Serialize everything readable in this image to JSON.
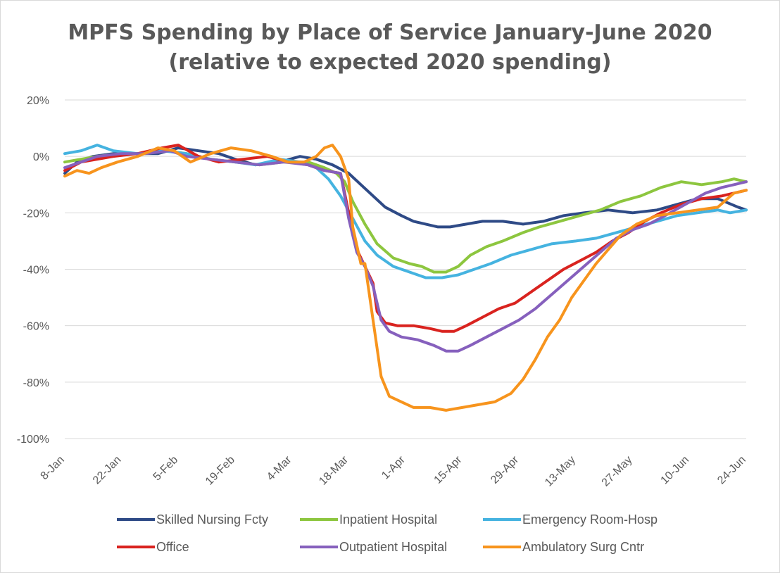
{
  "chart_data": {
    "type": "line",
    "title": "MPFS Spending by Place of Service January-June 2020",
    "subtitle": "(relative to expected 2020 spending)",
    "xlabel": "",
    "ylabel": "",
    "ylim": [
      -100,
      20
    ],
    "y_ticks": [
      20,
      0,
      -20,
      -40,
      -60,
      -80,
      -100
    ],
    "y_tick_labels": [
      "20%",
      "0%",
      "-20%",
      "-40%",
      "-60%",
      "-80%",
      "-100%"
    ],
    "x_range_days": [
      0,
      168
    ],
    "x_ticks": [
      0,
      14,
      28,
      42,
      56,
      70,
      84,
      98,
      112,
      126,
      140,
      154,
      168
    ],
    "x_tick_labels": [
      "8-Jan",
      "22-Jan",
      "5-Feb",
      "19-Feb",
      "4-Mar",
      "18-Mar",
      "1-Apr",
      "15-Apr",
      "29-Apr",
      "13-May",
      "27-May",
      "10-Jun",
      "24-Jun"
    ],
    "x_unit": "days since 8-Jan",
    "legend_position": "bottom",
    "series": [
      {
        "name": "Skilled Nursing Fcty",
        "color": "#2E4A86",
        "points": [
          [
            0,
            -6
          ],
          [
            3,
            -2
          ],
          [
            7,
            0
          ],
          [
            12,
            1
          ],
          [
            18,
            1
          ],
          [
            23,
            1
          ],
          [
            28,
            3
          ],
          [
            33,
            2
          ],
          [
            38,
            1
          ],
          [
            42,
            -1
          ],
          [
            47,
            -3
          ],
          [
            53,
            -2
          ],
          [
            58,
            0
          ],
          [
            62,
            -1
          ],
          [
            66,
            -3
          ],
          [
            70,
            -6
          ],
          [
            73,
            -10
          ],
          [
            76,
            -14
          ],
          [
            79,
            -18
          ],
          [
            83,
            -21
          ],
          [
            86,
            -23
          ],
          [
            89,
            -24
          ],
          [
            92,
            -25
          ],
          [
            95,
            -25
          ],
          [
            99,
            -24
          ],
          [
            103,
            -23
          ],
          [
            108,
            -23
          ],
          [
            113,
            -24
          ],
          [
            118,
            -23
          ],
          [
            123,
            -21
          ],
          [
            128,
            -20
          ],
          [
            134,
            -19
          ],
          [
            140,
            -20
          ],
          [
            146,
            -19
          ],
          [
            151,
            -17
          ],
          [
            156,
            -15
          ],
          [
            161,
            -15
          ],
          [
            166,
            -18
          ],
          [
            168,
            -19
          ]
        ]
      },
      {
        "name": "Inpatient Hospital",
        "color": "#8DC63F",
        "points": [
          [
            0,
            -2
          ],
          [
            4,
            -1
          ],
          [
            8,
            0
          ],
          [
            14,
            1
          ],
          [
            20,
            1
          ],
          [
            25,
            2
          ],
          [
            30,
            1
          ],
          [
            36,
            -1
          ],
          [
            42,
            -2
          ],
          [
            48,
            -3
          ],
          [
            54,
            -2
          ],
          [
            60,
            -2
          ],
          [
            64,
            -4
          ],
          [
            67,
            -6
          ],
          [
            69,
            -9
          ],
          [
            71,
            -16
          ],
          [
            74,
            -24
          ],
          [
            77,
            -31
          ],
          [
            81,
            -36
          ],
          [
            85,
            -38
          ],
          [
            88,
            -39
          ],
          [
            91,
            -41
          ],
          [
            94,
            -41
          ],
          [
            97,
            -39
          ],
          [
            100,
            -35
          ],
          [
            104,
            -32
          ],
          [
            108,
            -30
          ],
          [
            113,
            -27
          ],
          [
            117,
            -25
          ],
          [
            122,
            -23
          ],
          [
            127,
            -21
          ],
          [
            132,
            -19
          ],
          [
            137,
            -16
          ],
          [
            142,
            -14
          ],
          [
            147,
            -11
          ],
          [
            152,
            -9
          ],
          [
            157,
            -10
          ],
          [
            162,
            -9
          ],
          [
            165,
            -8
          ],
          [
            168,
            -9
          ]
        ]
      },
      {
        "name": "Emergency Room-Hosp",
        "color": "#45B3E0",
        "points": [
          [
            0,
            1
          ],
          [
            4,
            2
          ],
          [
            8,
            4
          ],
          [
            12,
            2
          ],
          [
            18,
            1
          ],
          [
            24,
            2
          ],
          [
            30,
            1
          ],
          [
            36,
            -1
          ],
          [
            42,
            -2
          ],
          [
            47,
            -3
          ],
          [
            53,
            -1
          ],
          [
            58,
            -2
          ],
          [
            62,
            -4
          ],
          [
            65,
            -8
          ],
          [
            68,
            -14
          ],
          [
            71,
            -22
          ],
          [
            74,
            -30
          ],
          [
            77,
            -35
          ],
          [
            81,
            -39
          ],
          [
            85,
            -41
          ],
          [
            89,
            -43
          ],
          [
            93,
            -43
          ],
          [
            97,
            -42
          ],
          [
            101,
            -40
          ],
          [
            105,
            -38
          ],
          [
            110,
            -35
          ],
          [
            115,
            -33
          ],
          [
            120,
            -31
          ],
          [
            126,
            -30
          ],
          [
            131,
            -29
          ],
          [
            136,
            -27
          ],
          [
            141,
            -25
          ],
          [
            146,
            -23
          ],
          [
            151,
            -21
          ],
          [
            156,
            -20
          ],
          [
            161,
            -19
          ],
          [
            164,
            -20
          ],
          [
            168,
            -19
          ]
        ]
      },
      {
        "name": "Office",
        "color": "#D9231F",
        "points": [
          [
            0,
            -5
          ],
          [
            4,
            -2
          ],
          [
            8,
            -1
          ],
          [
            12,
            0
          ],
          [
            18,
            1
          ],
          [
            24,
            3
          ],
          [
            28,
            4
          ],
          [
            33,
            0
          ],
          [
            38,
            -2
          ],
          [
            44,
            -1
          ],
          [
            50,
            0
          ],
          [
            55,
            -2
          ],
          [
            60,
            -3
          ],
          [
            64,
            -5
          ],
          [
            68,
            -6
          ],
          [
            70,
            -20
          ],
          [
            72,
            -33
          ],
          [
            74,
            -39
          ],
          [
            76,
            -45
          ],
          [
            77,
            -55
          ],
          [
            79,
            -59
          ],
          [
            82,
            -60
          ],
          [
            86,
            -60
          ],
          [
            90,
            -61
          ],
          [
            93,
            -62
          ],
          [
            96,
            -62
          ],
          [
            99,
            -60
          ],
          [
            103,
            -57
          ],
          [
            107,
            -54
          ],
          [
            111,
            -52
          ],
          [
            115,
            -48
          ],
          [
            119,
            -44
          ],
          [
            123,
            -40
          ],
          [
            127,
            -37
          ],
          [
            131,
            -34
          ],
          [
            135,
            -30
          ],
          [
            139,
            -27
          ],
          [
            143,
            -23
          ],
          [
            147,
            -20
          ],
          [
            152,
            -17
          ],
          [
            157,
            -15
          ],
          [
            162,
            -14
          ],
          [
            165,
            -13
          ],
          [
            168,
            -12
          ]
        ]
      },
      {
        "name": "Outpatient Hospital",
        "color": "#8660BD",
        "points": [
          [
            0,
            -4
          ],
          [
            4,
            -2
          ],
          [
            8,
            0
          ],
          [
            14,
            1
          ],
          [
            20,
            1
          ],
          [
            26,
            2
          ],
          [
            30,
            0
          ],
          [
            36,
            -1
          ],
          [
            42,
            -2
          ],
          [
            48,
            -3
          ],
          [
            54,
            -2
          ],
          [
            60,
            -3
          ],
          [
            64,
            -5
          ],
          [
            68,
            -6
          ],
          [
            70,
            -22
          ],
          [
            72,
            -34
          ],
          [
            74,
            -39
          ],
          [
            76,
            -46
          ],
          [
            78,
            -58
          ],
          [
            80,
            -62
          ],
          [
            83,
            -64
          ],
          [
            87,
            -65
          ],
          [
            91,
            -67
          ],
          [
            94,
            -69
          ],
          [
            97,
            -69
          ],
          [
            100,
            -67
          ],
          [
            104,
            -64
          ],
          [
            108,
            -61
          ],
          [
            112,
            -58
          ],
          [
            116,
            -54
          ],
          [
            120,
            -49
          ],
          [
            124,
            -44
          ],
          [
            128,
            -39
          ],
          [
            132,
            -34
          ],
          [
            136,
            -29
          ],
          [
            140,
            -26
          ],
          [
            144,
            -24
          ],
          [
            148,
            -21
          ],
          [
            153,
            -17
          ],
          [
            158,
            -13
          ],
          [
            162,
            -11
          ],
          [
            165,
            -10
          ],
          [
            168,
            -9
          ]
        ]
      },
      {
        "name": "Ambulatory Surg Cntr",
        "color": "#F7941D",
        "points": [
          [
            0,
            -7
          ],
          [
            3,
            -5
          ],
          [
            6,
            -6
          ],
          [
            9,
            -4
          ],
          [
            13,
            -2
          ],
          [
            18,
            0
          ],
          [
            23,
            3
          ],
          [
            27,
            2
          ],
          [
            31,
            -2
          ],
          [
            36,
            1
          ],
          [
            41,
            3
          ],
          [
            46,
            2
          ],
          [
            51,
            0
          ],
          [
            55,
            -2
          ],
          [
            59,
            -2
          ],
          [
            62,
            0
          ],
          [
            64,
            3
          ],
          [
            66,
            4
          ],
          [
            68,
            0
          ],
          [
            70,
            -8
          ],
          [
            71,
            -25
          ],
          [
            73,
            -38
          ],
          [
            74,
            -38
          ],
          [
            76,
            -58
          ],
          [
            78,
            -78
          ],
          [
            80,
            -85
          ],
          [
            83,
            -87
          ],
          [
            86,
            -89
          ],
          [
            90,
            -89
          ],
          [
            94,
            -90
          ],
          [
            98,
            -89
          ],
          [
            102,
            -88
          ],
          [
            106,
            -87
          ],
          [
            110,
            -84
          ],
          [
            113,
            -79
          ],
          [
            116,
            -72
          ],
          [
            119,
            -64
          ],
          [
            122,
            -58
          ],
          [
            125,
            -50
          ],
          [
            128,
            -44
          ],
          [
            131,
            -38
          ],
          [
            134,
            -33
          ],
          [
            137,
            -28
          ],
          [
            141,
            -24
          ],
          [
            146,
            -21
          ],
          [
            151,
            -20
          ],
          [
            156,
            -19
          ],
          [
            161,
            -18
          ],
          [
            165,
            -13
          ],
          [
            168,
            -12
          ]
        ]
      }
    ]
  }
}
